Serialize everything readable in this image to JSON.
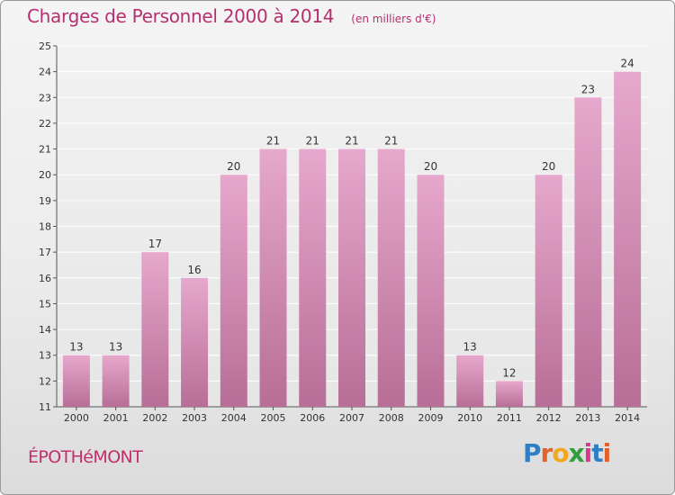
{
  "chart_data": {
    "type": "bar",
    "title": "Charges de Personnel 2000 à 2014",
    "subtitle": "(en milliers d'€)",
    "categories": [
      "2000",
      "2001",
      "2002",
      "2003",
      "2004",
      "2005",
      "2006",
      "2007",
      "2008",
      "2009",
      "2010",
      "2011",
      "2012",
      "2013",
      "2014"
    ],
    "values": [
      13,
      13,
      17,
      16,
      20,
      21,
      21,
      21,
      21,
      20,
      13,
      12,
      20,
      23,
      24
    ],
    "ylim": [
      11,
      25
    ],
    "yticks": [
      11,
      12,
      13,
      14,
      15,
      16,
      17,
      18,
      19,
      20,
      21,
      22,
      23,
      24,
      25
    ],
    "grid": true,
    "bar_color": "#d67fae"
  },
  "commune": "ÉPOTHéMONT",
  "logo": {
    "letters": [
      "P",
      "r",
      "o",
      "x",
      "i",
      "t",
      "i"
    ],
    "colors": [
      "#2f7fc4",
      "#e2622a",
      "#f0a81c",
      "#2e9e3e",
      "#d63a8c",
      "#2f7fc4",
      "#e2622a"
    ]
  }
}
